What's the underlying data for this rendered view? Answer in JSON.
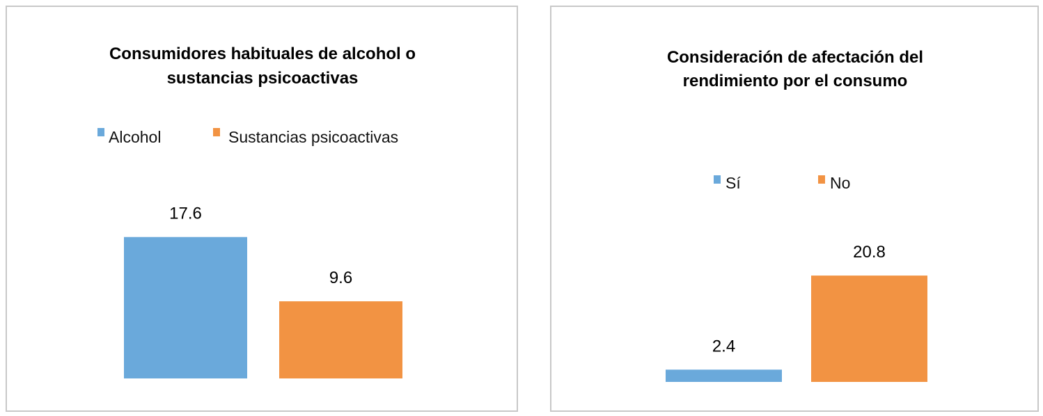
{
  "colors": {
    "blue": "#6aa9db",
    "orange": "#f29343"
  },
  "chart_data": [
    {
      "type": "bar",
      "title_lines": [
        "Consumidores habituales de alcohol o",
        "sustancias psicoactivas"
      ],
      "legend_placement": "top",
      "grid": false,
      "series": [
        {
          "name": "Alcohol",
          "value": 17.6,
          "label": "17.6",
          "color": "#6aa9db"
        },
        {
          "name": "Sustancias psicoactivas",
          "value": 9.6,
          "label": "9.6",
          "color": "#f29343"
        }
      ]
    },
    {
      "type": "bar",
      "title_lines": [
        "Consideración de afectación del",
        "rendimiento por  el consumo"
      ],
      "legend_placement": "top",
      "grid": false,
      "series": [
        {
          "name": "Sí",
          "value": 2.4,
          "label": "2.4",
          "color": "#6aa9db"
        },
        {
          "name": "No",
          "value": 20.8,
          "label": "20.8",
          "color": "#f29343"
        }
      ]
    }
  ]
}
